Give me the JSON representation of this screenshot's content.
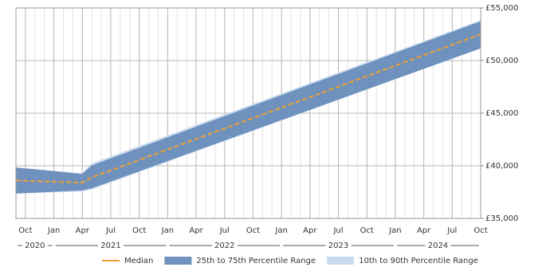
{
  "chart_data": {
    "type": "area-band-line",
    "x": [
      "2020-09",
      "2021-04",
      "2021-05",
      "2024-10"
    ],
    "series": [
      {
        "name": "10th to 90th Percentile Range",
        "color": "#c9dbee",
        "lower": [
          37400,
          37600,
          37800,
          51200
        ],
        "upper": [
          39800,
          39200,
          40200,
          53800
        ]
      },
      {
        "name": "25th to 75th Percentile Range",
        "color": "#6f91be",
        "lower": [
          37400,
          37700,
          37900,
          51200
        ],
        "upper": [
          39800,
          39200,
          40000,
          53700
        ]
      },
      {
        "name": "Median",
        "color": "#f0a030",
        "values": [
          38600,
          38400,
          38900,
          52500
        ]
      }
    ],
    "xlim": [
      "2020-09",
      "2024-10"
    ],
    "xticks": [
      {
        "value": "2020-10",
        "label": "Oct"
      },
      {
        "value": "2021-01",
        "label": "Jan"
      },
      {
        "value": "2021-04",
        "label": "Apr"
      },
      {
        "value": "2021-07",
        "label": "Jul"
      },
      {
        "value": "2021-10",
        "label": "Oct"
      },
      {
        "value": "2022-01",
        "label": "Jan"
      },
      {
        "value": "2022-04",
        "label": "Apr"
      },
      {
        "value": "2022-07",
        "label": "Jul"
      },
      {
        "value": "2022-10",
        "label": "Oct"
      },
      {
        "value": "2023-01",
        "label": "Jan"
      },
      {
        "value": "2023-04",
        "label": "Apr"
      },
      {
        "value": "2023-07",
        "label": "Jul"
      },
      {
        "value": "2023-10",
        "label": "Oct"
      },
      {
        "value": "2024-01",
        "label": "Jan"
      },
      {
        "value": "2024-04",
        "label": "Apr"
      },
      {
        "value": "2024-07",
        "label": "Jul"
      },
      {
        "value": "2024-10",
        "label": "Oct"
      }
    ],
    "years": [
      "2020",
      "2021",
      "2022",
      "2023",
      "2024"
    ],
    "ylim": [
      35000,
      55000
    ],
    "yticks": [
      {
        "value": 35000,
        "label": "£35,000"
      },
      {
        "value": 40000,
        "label": "£40,000"
      },
      {
        "value": 45000,
        "label": "£45,000"
      },
      {
        "value": 50000,
        "label": "£50,000"
      },
      {
        "value": 55000,
        "label": "£55,000"
      }
    ],
    "grid": true,
    "legend": "bottom",
    "legend_order": [
      2,
      1,
      0
    ]
  }
}
